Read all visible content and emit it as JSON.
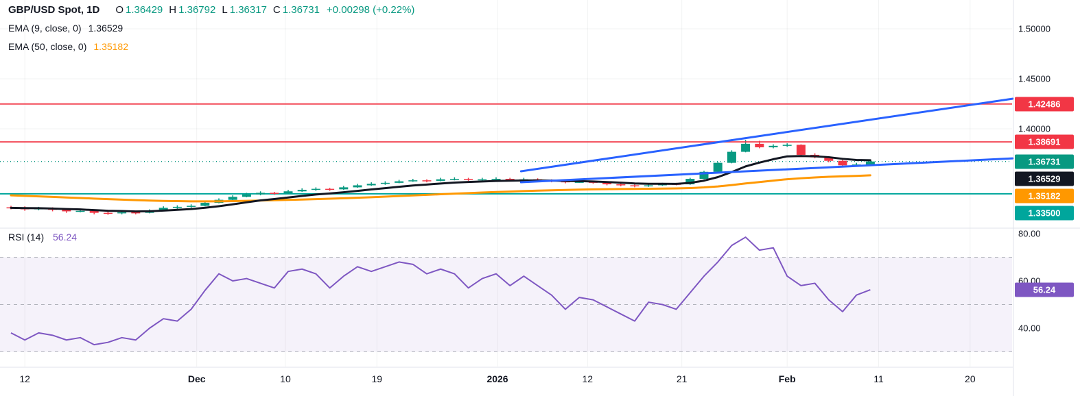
{
  "colors": {
    "up": "#089981",
    "down": "#f23645",
    "level_red": "#f23645",
    "teal": "#00a69c",
    "blue": "#2962ff",
    "ema9": "#131722",
    "ema50": "#ff9800",
    "rsi_purple": "#7e57c2",
    "change_green": "#089981",
    "axis_text": "#131722"
  },
  "legend": {
    "symbol": "GBP/USD Spot, 1D",
    "ohlc": [
      {
        "k": "O",
        "v": "1.36429"
      },
      {
        "k": "H",
        "v": "1.36792"
      },
      {
        "k": "L",
        "v": "1.36317"
      },
      {
        "k": "C",
        "v": "1.36731"
      }
    ],
    "change": "+0.00298 (+0.22%)",
    "indicators": [
      {
        "label": "EMA (9, close, 0)",
        "value": "1.36529"
      },
      {
        "label": "EMA (50, close, 0)",
        "value": "1.35182"
      }
    ],
    "rsi_label": "RSI (14)",
    "rsi_value": "56.24"
  },
  "chart_data": {
    "type": "candlestick",
    "symbol": "GBP/USD Spot",
    "interval": "1D",
    "x_axis": {
      "ticks": [
        {
          "label": "12",
          "i": 1.0,
          "bold": false
        },
        {
          "label": "Dec",
          "i": 13.4,
          "bold": true
        },
        {
          "label": "10",
          "i": 19.8,
          "bold": false
        },
        {
          "label": "19",
          "i": 26.4,
          "bold": false
        },
        {
          "label": "2026",
          "i": 35.1,
          "bold": true
        },
        {
          "label": "12",
          "i": 41.6,
          "bold": false
        },
        {
          "label": "21",
          "i": 48.4,
          "bold": false
        },
        {
          "label": "Feb",
          "i": 56.0,
          "bold": true
        },
        {
          "label": "11",
          "i": 62.6,
          "bold": false
        },
        {
          "label": "20",
          "i": 69.2,
          "bold": false
        }
      ]
    },
    "y_axis": {
      "labels": [
        {
          "text": "1.50000",
          "price": 1.5
        },
        {
          "text": "1.45000",
          "price": 1.45
        },
        {
          "text": "1.40000",
          "price": 1.4
        }
      ]
    },
    "candles": [
      [
        1.3215,
        1.323,
        1.3195,
        1.321
      ],
      [
        1.321,
        1.3225,
        1.318,
        1.3195
      ],
      [
        1.3195,
        1.322,
        1.3185,
        1.3205
      ],
      [
        1.3205,
        1.3215,
        1.3175,
        1.319
      ],
      [
        1.319,
        1.32,
        1.316,
        1.3175
      ],
      [
        1.3175,
        1.3195,
        1.3165,
        1.318
      ],
      [
        1.318,
        1.3185,
        1.3145,
        1.316
      ],
      [
        1.316,
        1.3175,
        1.314,
        1.3155
      ],
      [
        1.3155,
        1.318,
        1.3145,
        1.3165
      ],
      [
        1.3165,
        1.3175,
        1.3145,
        1.316
      ],
      [
        1.316,
        1.3195,
        1.3155,
        1.318
      ],
      [
        1.318,
        1.3225,
        1.3175,
        1.321
      ],
      [
        1.321,
        1.3235,
        1.32,
        1.322
      ],
      [
        1.322,
        1.3245,
        1.321,
        1.323
      ],
      [
        1.323,
        1.3275,
        1.3225,
        1.326
      ],
      [
        1.326,
        1.3305,
        1.3255,
        1.329
      ],
      [
        1.329,
        1.3335,
        1.3285,
        1.332
      ],
      [
        1.332,
        1.336,
        1.3315,
        1.3345
      ],
      [
        1.3345,
        1.3375,
        1.3335,
        1.336
      ],
      [
        1.336,
        1.337,
        1.334,
        1.3355
      ],
      [
        1.3355,
        1.339,
        1.335,
        1.3375
      ],
      [
        1.3375,
        1.3405,
        1.337,
        1.339
      ],
      [
        1.339,
        1.3415,
        1.338,
        1.34
      ],
      [
        1.34,
        1.341,
        1.338,
        1.3395
      ],
      [
        1.3395,
        1.343,
        1.339,
        1.3415
      ],
      [
        1.3415,
        1.345,
        1.341,
        1.3435
      ],
      [
        1.3435,
        1.3465,
        1.343,
        1.345
      ],
      [
        1.345,
        1.3475,
        1.344,
        1.346
      ],
      [
        1.346,
        1.349,
        1.3455,
        1.3475
      ],
      [
        1.3475,
        1.35,
        1.347,
        1.3485
      ],
      [
        1.3485,
        1.3495,
        1.3465,
        1.348
      ],
      [
        1.348,
        1.351,
        1.3475,
        1.3495
      ],
      [
        1.3495,
        1.3515,
        1.3485,
        1.35
      ],
      [
        1.35,
        1.351,
        1.348,
        1.349
      ],
      [
        1.349,
        1.351,
        1.348,
        1.3495
      ],
      [
        1.3495,
        1.3515,
        1.3485,
        1.35
      ],
      [
        1.35,
        1.351,
        1.348,
        1.349
      ],
      [
        1.349,
        1.351,
        1.3485,
        1.3495
      ],
      [
        1.3495,
        1.3505,
        1.3475,
        1.3485
      ],
      [
        1.3485,
        1.3495,
        1.3465,
        1.3475
      ],
      [
        1.3475,
        1.3485,
        1.3455,
        1.3465
      ],
      [
        1.3465,
        1.3485,
        1.346,
        1.347
      ],
      [
        1.347,
        1.348,
        1.345,
        1.346
      ],
      [
        1.346,
        1.347,
        1.3435,
        1.3445
      ],
      [
        1.3445,
        1.3455,
        1.3425,
        1.3435
      ],
      [
        1.3435,
        1.3445,
        1.3415,
        1.3425
      ],
      [
        1.3425,
        1.3445,
        1.342,
        1.3435
      ],
      [
        1.3435,
        1.346,
        1.343,
        1.345
      ],
      [
        1.345,
        1.346,
        1.3435,
        1.3445
      ],
      [
        1.3445,
        1.351,
        1.344,
        1.35
      ],
      [
        1.35,
        1.358,
        1.3495,
        1.357
      ],
      [
        1.357,
        1.367,
        1.3565,
        1.366
      ],
      [
        1.366,
        1.3785,
        1.3655,
        1.377
      ],
      [
        1.377,
        1.389,
        1.3765,
        1.385
      ],
      [
        1.385,
        1.388,
        1.3805,
        1.3815
      ],
      [
        1.3815,
        1.3845,
        1.3805,
        1.383
      ],
      [
        1.383,
        1.3855,
        1.382,
        1.384
      ],
      [
        1.384,
        1.3845,
        1.3725,
        1.374
      ],
      [
        1.374,
        1.3755,
        1.3705,
        1.3715
      ],
      [
        1.3715,
        1.3725,
        1.3665,
        1.368
      ],
      [
        1.368,
        1.369,
        1.3625,
        1.3635
      ],
      [
        1.3635,
        1.366,
        1.3625,
        1.3643
      ],
      [
        1.36429,
        1.36792,
        1.36317,
        1.36731
      ]
    ],
    "indicators": [
      {
        "type": "EMA",
        "period": 9,
        "color": "#131722",
        "width": 3,
        "value": 1.36529
      },
      {
        "type": "EMA",
        "period": 50,
        "color": "#ff9800",
        "width": 3,
        "value": 1.35182,
        "seed": 1.334
      }
    ],
    "levels": [
      {
        "price": 1.42486,
        "color": "#f23645",
        "width": 2,
        "z": "front"
      },
      {
        "price": 1.38691,
        "color": "#f23645",
        "width": 2,
        "z": "front"
      },
      {
        "price": 1.335,
        "color": "#00a69c",
        "width": 2,
        "z": "back"
      }
    ],
    "last_price_line": {
      "price": 1.36731,
      "color": "#089981"
    },
    "trendlines": [
      {
        "i1": 36.8,
        "p1": 1.35753,
        "i2": 72.3,
        "p2": 1.43014
      },
      {
        "i1": 36.8,
        "p1": 1.34658,
        "i2": 72.3,
        "p2": 1.37047
      }
    ],
    "badges": [
      {
        "text": "1.42486",
        "price": 1.42486,
        "bg": "#f23645"
      },
      {
        "text": "1.38691",
        "price": 1.38691,
        "bg": "#f23645"
      },
      {
        "text": "1.36731",
        "price": 1.36731,
        "bg": "#089981"
      },
      {
        "text": "1.36529",
        "price": 1.36529,
        "bg": "#131722"
      },
      {
        "text": "1.35182",
        "price": 1.35182,
        "bg": "#ff9800"
      },
      {
        "text": "1.33500",
        "price": 1.335,
        "bg": "#00a69c"
      }
    ],
    "rsi": {
      "period": 14,
      "value": 56.24,
      "badge": {
        "text": "56.24",
        "bg": "#7e57c2"
      },
      "line_color": "#7e57c2",
      "band_fill": "rgba(126,87,194,0.08)",
      "bands": {
        "upper": 70,
        "middle": 50,
        "lower": 30
      },
      "axis_labels": [
        {
          "text": "80.00",
          "value": 80
        },
        {
          "text": "60.00",
          "value": 60
        },
        {
          "text": "40.00",
          "value": 40
        }
      ],
      "values": [
        38,
        35,
        38,
        37,
        35,
        36,
        33,
        34,
        36,
        35,
        40,
        44,
        43,
        48,
        56,
        63,
        60,
        61,
        59,
        57,
        64,
        65,
        63,
        57,
        62,
        66,
        64,
        66,
        68,
        67,
        63,
        65,
        63,
        57,
        61,
        63,
        58,
        62,
        58,
        54,
        48,
        53,
        52,
        49,
        46,
        43,
        51,
        50,
        48,
        55,
        62,
        68,
        75,
        78.5,
        73,
        74,
        62,
        58,
        59,
        52,
        47,
        54,
        56.24
      ]
    }
  }
}
